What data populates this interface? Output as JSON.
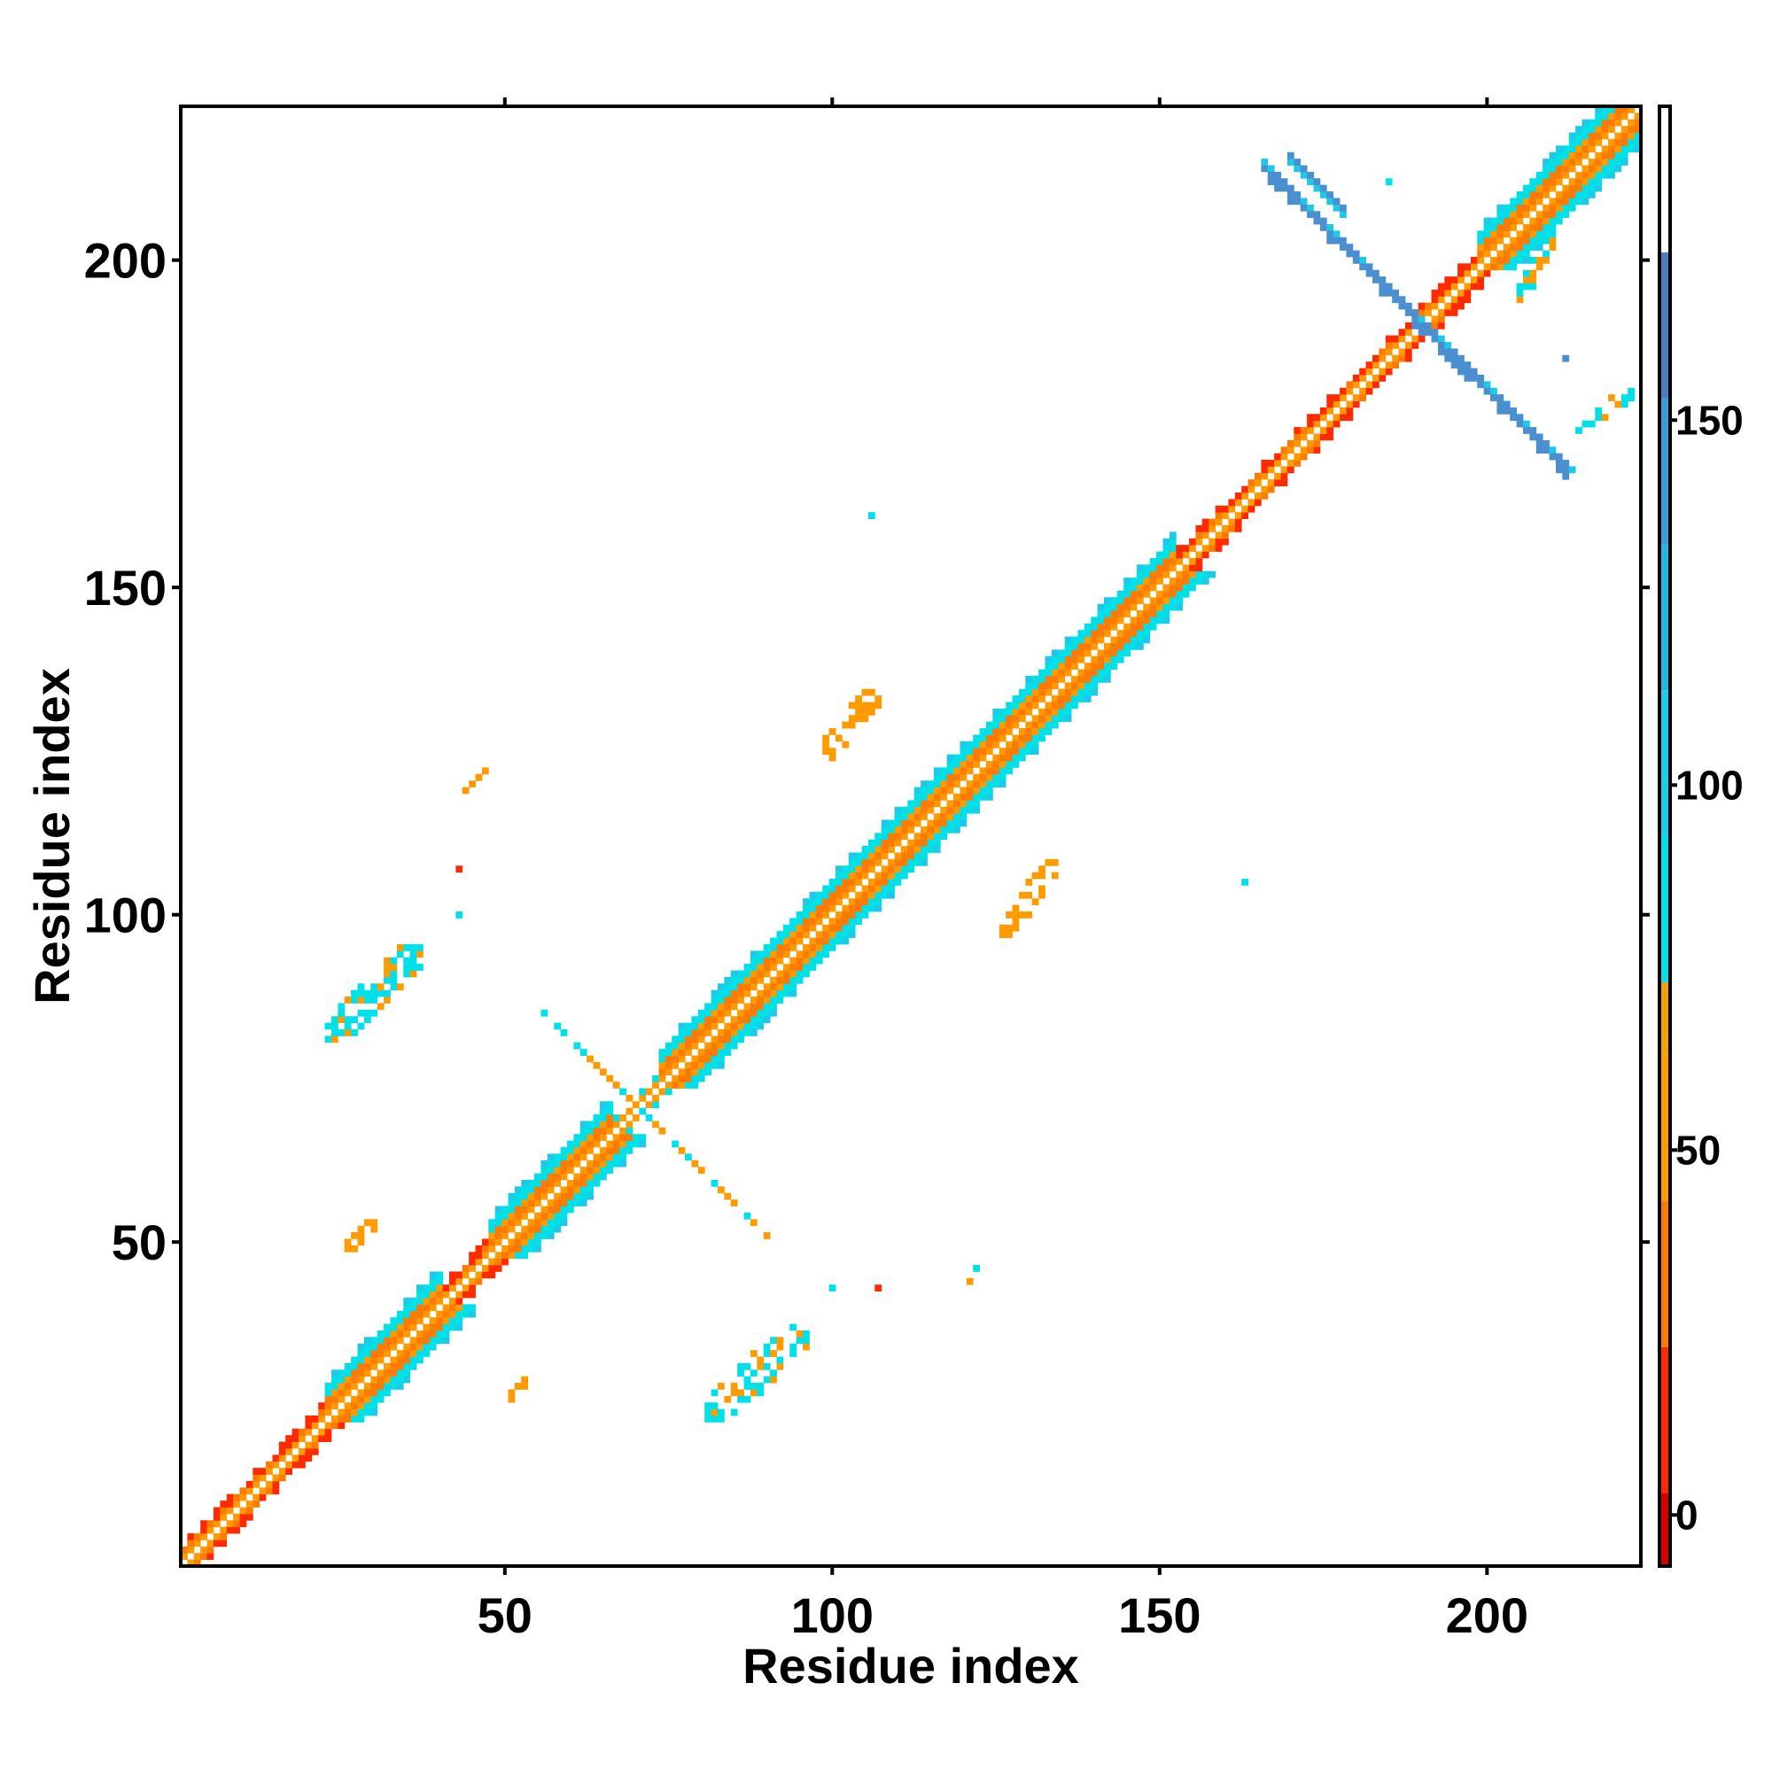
{
  "chart_data": {
    "type": "heatmap",
    "title": "",
    "xlabel": "Residue index",
    "ylabel": "Residue index",
    "xlim": [
      0.5,
      223.5
    ],
    "ylim": [
      0.5,
      223.5
    ],
    "x_ticks": [
      50,
      100,
      150,
      200
    ],
    "y_ticks": [
      50,
      100,
      150,
      200
    ],
    "x_tick_labels": [
      "50",
      "100",
      "150",
      "200"
    ],
    "y_tick_labels": [
      "50",
      "100",
      "150",
      "200"
    ],
    "grid": false,
    "colorbar": {
      "position": "right",
      "min": -7,
      "max": 193,
      "ticks": [
        0,
        50,
        100,
        150
      ],
      "tick_labels": [
        "0",
        "50",
        "100",
        "150"
      ],
      "bins": [
        {
          "from": -7,
          "to": 3,
          "color": "#d40000"
        },
        {
          "from": 3,
          "to": 23,
          "color": "#ff2a00"
        },
        {
          "from": 23,
          "to": 43,
          "color": "#ff7a00"
        },
        {
          "from": 43,
          "to": 63,
          "color": "#ff9a00"
        },
        {
          "from": 63,
          "to": 73,
          "color": "#f2a100"
        },
        {
          "from": 73,
          "to": 93,
          "color": "#00e0e8"
        },
        {
          "from": 93,
          "to": 113,
          "color": "#18cfe6"
        },
        {
          "from": 113,
          "to": 133,
          "color": "#20b8e0"
        },
        {
          "from": 133,
          "to": 153,
          "color": "#3a9ed6"
        },
        {
          "from": 153,
          "to": 173,
          "color": "#4a7cbf"
        },
        {
          "from": 173,
          "to": 193,
          "color": "#ffffff"
        }
      ]
    },
    "cell_colors": {
      "diag": "#ffffff",
      "near_diag": "#ff9a00",
      "strand_core": "#ff7a00",
      "strand_edge": "#00e0e8",
      "helix_core": "#ff2a00",
      "cross_blue": "#4a8fd0",
      "cross_cyan": "#20c8e8",
      "scatter_orange": "#ff9a00",
      "scatter_cyan": "#00e0e8",
      "scatter_red": "#ff2a00"
    },
    "segments": [
      {
        "from": 1,
        "to": 22,
        "kind": "helix"
      },
      {
        "from": 23,
        "to": 40,
        "kind": "strand"
      },
      {
        "from": 41,
        "to": 47,
        "kind": "helix"
      },
      {
        "from": 48,
        "to": 66,
        "kind": "strand"
      },
      {
        "from": 67,
        "to": 73,
        "kind": "thin"
      },
      {
        "from": 74,
        "to": 100,
        "kind": "strand"
      },
      {
        "from": 101,
        "to": 118,
        "kind": "strand"
      },
      {
        "from": 119,
        "to": 138,
        "kind": "strand"
      },
      {
        "from": 139,
        "to": 152,
        "kind": "strand"
      },
      {
        "from": 153,
        "to": 170,
        "kind": "helix"
      },
      {
        "from": 171,
        "to": 198,
        "kind": "helix"
      },
      {
        "from": 199,
        "to": 223,
        "kind": "strand"
      }
    ],
    "antidiagonal_bands": [
      {
        "sum": 141,
        "x_from": 55,
        "x_to": 90,
        "color": "orange"
      },
      {
        "sum": 380,
        "x_from": 166,
        "x_to": 212,
        "color": "blue"
      },
      {
        "sum": 385,
        "x_from": 170,
        "x_to": 178,
        "color": "cyan"
      }
    ],
    "contact_patches": [
      {
        "x": [
          23,
          37
        ],
        "y": [
          81,
          95
        ],
        "color": "cyan"
      },
      {
        "x": [
          44,
          47
        ],
        "y": [
          119,
          122
        ],
        "color": "orange"
      },
      {
        "x": [
          25,
          30
        ],
        "y": [
          48,
          53
        ],
        "color": "orange"
      },
      {
        "x": [
          49,
          54
        ],
        "y": [
          25,
          29
        ],
        "color": "orange"
      },
      {
        "x": [
          81,
          96
        ],
        "y": [
          23,
          37
        ],
        "color": "cyan"
      },
      {
        "x": [
          98,
          107
        ],
        "y": [
          124,
          134
        ],
        "color": "orange"
      },
      {
        "x": [
          126,
          134
        ],
        "y": [
          97,
          108
        ],
        "color": "orange"
      },
      {
        "x": [
          120,
          122
        ],
        "y": [
          43,
          46
        ],
        "color": "cyan"
      },
      {
        "x": [
          214,
          222
        ],
        "y": [
          174,
          180
        ],
        "color": "cyan"
      },
      {
        "x": [
          205,
          210
        ],
        "y": [
          194,
          204
        ],
        "color": "cyan"
      }
    ],
    "isolated_points": [
      {
        "x": 106,
        "y": 161,
        "color": "cyan"
      },
      {
        "x": 163,
        "y": 105,
        "color": "cyan"
      },
      {
        "x": 43,
        "y": 107,
        "color": "red"
      },
      {
        "x": 43,
        "y": 100,
        "color": "cyan"
      },
      {
        "x": 107,
        "y": 43,
        "color": "red"
      },
      {
        "x": 100,
        "y": 43,
        "color": "cyan"
      },
      {
        "x": 185,
        "y": 212,
        "color": "cyan"
      },
      {
        "x": 212,
        "y": 185,
        "color": "blue"
      }
    ]
  }
}
